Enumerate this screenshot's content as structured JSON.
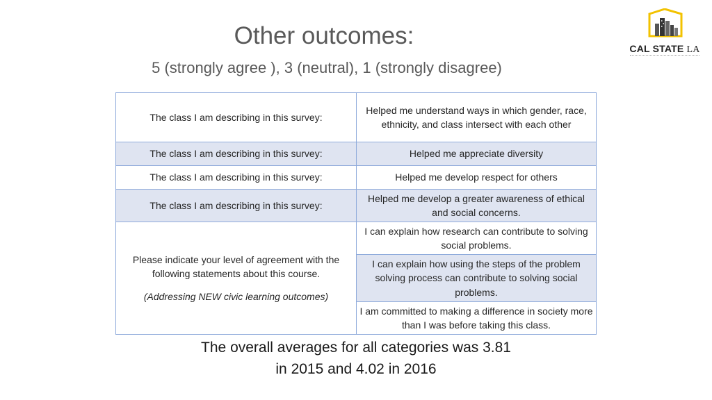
{
  "header": {
    "title": "Other outcomes:",
    "subtitle": "5 (strongly agree ), 3 (neutral), 1 (strongly disagree)"
  },
  "logo": {
    "text_main": "CAL STATE",
    "text_suffix": "LA"
  },
  "table": {
    "rows": [
      {
        "left": "The class I am describing in this survey:",
        "right": "Helped me understand ways in which gender, race, ethnicity, and class intersect with each other"
      },
      {
        "left": "The class I am describing in this survey:",
        "right": "Helped me appreciate diversity"
      },
      {
        "left": "The class I am describing in this survey:",
        "right": "Helped me develop respect for others"
      },
      {
        "left": "The class I am describing in this survey:",
        "right": "Helped me develop a greater awareness of ethical and social concerns."
      }
    ],
    "group": {
      "left_text": "Please indicate your level of agreement with the following statements about this course.",
      "left_note": "(Addressing NEW civic learning outcomes)",
      "items": [
        "I can explain how research can contribute to solving social problems.",
        "I can explain how using the steps of the problem solving process can contribute to solving social problems.",
        "I am committed to making a difference in society more than I was before taking this class."
      ]
    }
  },
  "footer": {
    "line1": "The overall averages for all categories was 3.81",
    "line2": "in 2015 and 4.02 in 2016"
  },
  "colors": {
    "table_border": "#8eaadb",
    "band_fill": "#dfe4f1",
    "logo_gold": "#f2c200"
  }
}
